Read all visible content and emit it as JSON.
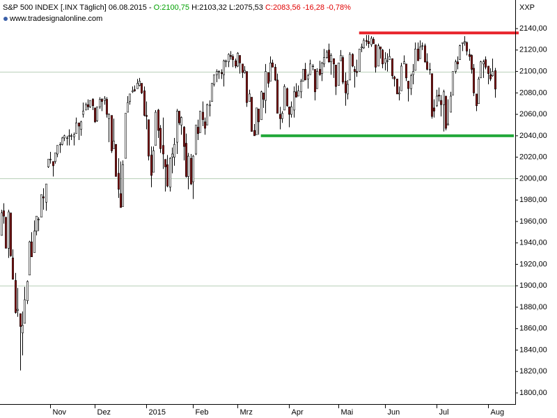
{
  "header": {
    "symbol": "S&P 500 INDEX [.INX  Täglich] 06.08.2015 -",
    "open": "O:2100,75",
    "high": "H:2103,32",
    "low": "L:2075,53",
    "close": "C:2083,56 -16,28 -0,78%"
  },
  "source": "www.tradesignalonline.com",
  "axis_name": "XXP",
  "chart_data": {
    "type": "candlestick",
    "up_color": "#ffffff",
    "down_color": "#8b1a1a",
    "outline_color": "#000000",
    "ylim": [
      1789.6,
      2166.7
    ],
    "yticks": [
      {
        "value": 1800,
        "label": "1800,00"
      },
      {
        "value": 1820,
        "label": "1820,00"
      },
      {
        "value": 1840,
        "label": "1840,00"
      },
      {
        "value": 1860,
        "label": "1860,00"
      },
      {
        "value": 1880,
        "label": "1880,00"
      },
      {
        "value": 1900,
        "label": "1900,00"
      },
      {
        "value": 1920,
        "label": "1920,00"
      },
      {
        "value": 1940,
        "label": "1940,00"
      },
      {
        "value": 1960,
        "label": "1960,00"
      },
      {
        "value": 1980,
        "label": "1980,00"
      },
      {
        "value": 2000,
        "label": "2000,00"
      },
      {
        "value": 2020,
        "label": "2020,00"
      },
      {
        "value": 2040,
        "label": "2040,00"
      },
      {
        "value": 2060,
        "label": "2060,00"
      },
      {
        "value": 2080,
        "label": "2080,00"
      },
      {
        "value": 2100,
        "label": "2100,00"
      },
      {
        "value": 2120,
        "label": "2120,00"
      },
      {
        "value": 2140,
        "label": "2140,00"
      }
    ],
    "ygrid": [
      1900,
      2000,
      2100
    ],
    "levels": [
      {
        "value": 2136,
        "start_index": 153,
        "color": "#e8242b"
      },
      {
        "value": 2040,
        "start_index": 111,
        "color": "#22a83a"
      }
    ],
    "categories": [
      null,
      null,
      null,
      null,
      null,
      null,
      null,
      null,
      null,
      null,
      null,
      null,
      null,
      null,
      null,
      null,
      null,
      null,
      null,
      null,
      null,
      "Nov",
      null,
      null,
      null,
      null,
      null,
      null,
      null,
      null,
      null,
      null,
      null,
      null,
      null,
      null,
      null,
      null,
      null,
      null,
      "Dez",
      null,
      null,
      null,
      null,
      null,
      null,
      null,
      null,
      null,
      null,
      null,
      null,
      null,
      null,
      null,
      null,
      null,
      null,
      null,
      null,
      null,
      "2015",
      null,
      null,
      null,
      null,
      null,
      null,
      null,
      null,
      null,
      null,
      null,
      null,
      null,
      null,
      null,
      null,
      null,
      null,
      null,
      "Feb",
      null,
      null,
      null,
      null,
      null,
      null,
      null,
      null,
      null,
      null,
      null,
      null,
      null,
      null,
      null,
      null,
      null,
      null,
      "Mrz",
      null,
      null,
      null,
      null,
      null,
      null,
      null,
      null,
      null,
      null,
      null,
      null,
      null,
      null,
      null,
      null,
      null,
      null,
      null,
      null,
      null,
      "Apr",
      null,
      null,
      null,
      null,
      null,
      null,
      null,
      null,
      null,
      null,
      null,
      null,
      null,
      null,
      null,
      null,
      null,
      null,
      null,
      null,
      "Mai",
      null,
      null,
      null,
      null,
      null,
      null,
      null,
      null,
      null,
      null,
      null,
      null,
      null,
      null,
      null,
      null,
      null,
      null,
      null,
      "Jun",
      null,
      null,
      null,
      null,
      null,
      null,
      null,
      null,
      null,
      null,
      null,
      null,
      null,
      null,
      null,
      null,
      null,
      null,
      null,
      null,
      null,
      "Jul",
      null,
      null,
      null,
      null,
      null,
      null,
      null,
      null,
      null,
      null,
      null,
      null,
      null,
      null,
      null,
      null,
      null,
      null,
      null,
      null,
      null,
      "Aug",
      null,
      null,
      null
    ],
    "open": [
      1947,
      1970,
      1964,
      1935,
      1968,
      1926,
      1905,
      1877,
      1874,
      1856,
      1865,
      1886,
      1910,
      1941,
      1931,
      1951,
      1962,
      1964,
      1983,
      1978,
      2011,
      2018,
      2016,
      2016,
      2023,
      2032,
      2032,
      2038,
      2038,
      2040,
      2040,
      2039,
      2042,
      2052,
      2046,
      2060,
      2064,
      2069,
      2067,
      2074,
      2066,
      2054,
      2067,
      2074,
      2073,
      2074,
      2056,
      2059,
      2028,
      2032,
      2005,
      1986,
      1974,
      2019,
      2062,
      2072,
      2081,
      2083,
      2084,
      2087,
      2089,
      2082,
      2059,
      2055,
      2022,
      2006,
      2031,
      2064,
      2047,
      2031,
      2018,
      2013,
      1992,
      2020,
      2020,
      2034,
      2063,
      2050,
      2048,
      2033,
      2002,
      2019,
      1997,
      2023,
      2048,
      2043,
      2062,
      2053,
      2050,
      2068,
      2072,
      2088,
      2097,
      2100,
      2099,
      2097,
      2109,
      2109,
      2115,
      2114,
      2110,
      2105,
      2115,
      2107,
      2099,
      2100,
      2072,
      2076,
      2045,
      2041,
      2065,
      2055,
      2080,
      2073,
      2099,
      2091,
      2108,
      2104,
      2092,
      2060,
      2056,
      2064,
      2084,
      2067,
      2060,
      2064,
      2081,
      2077,
      2081,
      2091,
      2102,
      2093,
      2097,
      2105,
      2102,
      2084,
      2102,
      2098,
      2107,
      2113,
      2120,
      2109,
      2112,
      2106,
      2087,
      2110,
      2113,
      2091,
      2079,
      2092,
      2116,
      2102,
      2100,
      2100,
      2122,
      2122,
      2129,
      2128,
      2125,
      2130,
      2125,
      2105,
      2123,
      2120,
      2108,
      2110,
      2111,
      2112,
      2095,
      2093,
      2079,
      2082,
      2107,
      2107,
      2091,
      2084,
      2097,
      2101,
      2121,
      2112,
      2124,
      2124,
      2109,
      2102,
      2098,
      2066,
      2068,
      2078,
      2073,
      2069,
      2077,
      2050,
      2062,
      2078,
      2100,
      2109,
      2111,
      2126,
      2127,
      2127,
      2116,
      2115,
      2103,
      2079,
      2070,
      2094,
      2107,
      2111,
      2105,
      2097,
      2096,
      2100.75
    ],
    "high": [
      1971,
      1977,
      1964,
      1971,
      1968,
      1934,
      1912,
      1898,
      1874,
      1876,
      1899,
      1905,
      1942,
      1950,
      1961,
      1965,
      1964,
      1985,
      1991,
      1995,
      2018,
      2025,
      2016,
      2024,
      2031,
      2034,
      2039,
      2041,
      2040,
      2046,
      2042,
      2043,
      2057,
      2052,
      2054,
      2071,
      2071,
      2074,
      2073,
      2075,
      2066,
      2067,
      2076,
      2075,
      2077,
      2076,
      2061,
      2059,
      2056,
      2032,
      2019,
      2016,
      2017,
      2061,
      2077,
      2079,
      2086,
      2087,
      2093,
      2094,
      2089,
      2086,
      2072,
      2055,
      2030,
      2030,
      2064,
      2065,
      2050,
      2057,
      2018,
      2022,
      2020,
      2029,
      2038,
      2065,
      2063,
      2058,
      2049,
      2042,
      2024,
      2023,
      2022,
      2050,
      2055,
      2063,
      2072,
      2057,
      2070,
      2073,
      2089,
      2097,
      2102,
      2101,
      2102,
      2111,
      2111,
      2117,
      2119,
      2116,
      2112,
      2118,
      2115,
      2107,
      2105,
      2100,
      2083,
      2076,
      2051,
      2066,
      2065,
      2082,
      2080,
      2107,
      2099,
      2114,
      2111,
      2107,
      2098,
      2067,
      2063,
      2088,
      2085,
      2067,
      2072,
      2086,
      2089,
      2087,
      2093,
      2102,
      2108,
      2098,
      2111,
      2107,
      2102,
      2103,
      2110,
      2109,
      2121,
      2120,
      2126,
      2117,
      2112,
      2106,
      2108,
      2120,
      2115,
      2099,
      2092,
      2118,
      2117,
      2105,
      2111,
      2121,
      2126,
      2131,
      2134,
      2134,
      2133,
      2132,
      2125,
      2126,
      2123,
      2121,
      2118,
      2117,
      2121,
      2112,
      2096,
      2093,
      2086,
      2108,
      2115,
      2107,
      2091,
      2098,
      2107,
      2127,
      2127,
      2129,
      2127,
      2126,
      2117,
      2108,
      2098,
      2074,
      2083,
      2085,
      2078,
      2083,
      2077,
      2074,
      2081,
      2100,
      2111,
      2114,
      2125,
      2127,
      2133,
      2128,
      2121,
      2116,
      2107,
      2079,
      2095,
      2110,
      2111,
      2114,
      2105,
      2103,
      2112,
      2103.32
    ],
    "low": [
      1947,
      1958,
      1935,
      1926,
      1927,
      1906,
      1874,
      1871,
      1821,
      1835,
      1865,
      1883,
      1910,
      1927,
      1931,
      1947,
      1951,
      1964,
      1971,
      1970,
      2010,
      2014,
      2002,
      2014,
      2020,
      2024,
      2031,
      2035,
      2031,
      2031,
      2036,
      2031,
      2042,
      2036,
      2040,
      2057,
      2064,
      2064,
      2066,
      2064,
      2052,
      2053,
      2065,
      2063,
      2069,
      2057,
      2034,
      2024,
      2028,
      2002,
      1982,
      1973,
      1974,
      2019,
      2062,
      2069,
      2080,
      2081,
      2084,
      2086,
      2079,
      2058,
      2046,
      2017,
      1992,
      2006,
      2031,
      2038,
      2024,
      2009,
      1988,
      1992,
      1988,
      2005,
      2012,
      2023,
      2050,
      2041,
      2017,
      2001,
      1990,
      1994,
      1981,
      2022,
      2036,
      2043,
      2049,
      2041,
      2050,
      2058,
      2072,
      2086,
      2090,
      2093,
      2093,
      2086,
      2104,
      2104,
      2111,
      2104,
      2103,
      2104,
      2098,
      2094,
      2098,
      2067,
      2072,
      2044,
      2040,
      2041,
      2041,
      2055,
      2066,
      2061,
      2085,
      2091,
      2104,
      2091,
      2061,
      2046,
      2052,
      2064,
      2067,
      2048,
      2057,
      2057,
      2076,
      2077,
      2075,
      2091,
      2092,
      2084,
      2097,
      2101,
      2073,
      2084,
      2096,
      2091,
      2104,
      2112,
      2108,
      2097,
      2094,
      2078,
      2087,
      2110,
      2088,
      2068,
      2074,
      2092,
      2104,
      2085,
      2095,
      2100,
      2118,
      2121,
      2124,
      2122,
      2123,
      2126,
      2099,
      2105,
      2112,
      2103,
      2101,
      2100,
      2111,
      2093,
      2086,
      2079,
      2073,
      2082,
      2107,
      2091,
      2072,
      2078,
      2088,
      2101,
      2110,
      2112,
      2120,
      2108,
      2101,
      2097,
      2056,
      2057,
      2067,
      2072,
      2058,
      2044,
      2045,
      2050,
      2062,
      2078,
      2098,
      2102,
      2111,
      2119,
      2124,
      2115,
      2110,
      2098,
      2077,
      2063,
      2070,
      2094,
      2094,
      2102,
      2088,
      2091,
      2095,
      2075.53
    ],
    "close": [
      1968,
      1965,
      1935,
      1969,
      1928,
      1906,
      1875,
      1878,
      1862,
      1863,
      1887,
      1904,
      1941,
      1927,
      1951,
      1965,
      1962,
      1985,
      1982,
      1995,
      2018,
      2018,
      2012,
      2024,
      2031,
      2032,
      2038,
      2040,
      2038,
      2040,
      2040,
      2041,
      2052,
      2049,
      2053,
      2063,
      2069,
      2067,
      2073,
      2068,
      2053,
      2067,
      2074,
      2072,
      2075,
      2060,
      2060,
      2026,
      2035,
      2002,
      1990,
      1973,
      2013,
      2061,
      2071,
      2079,
      2082,
      2082,
      2089,
      2091,
      2080,
      2059,
      2058,
      2021,
      2003,
      2026,
      2062,
      2045,
      2028,
      2023,
      2011,
      1993,
      2019,
      2023,
      2032,
      2063,
      2052,
      2057,
      2030,
      2002,
      2021,
      1995,
      2021,
      2050,
      2042,
      2063,
      2055,
      2047,
      2069,
      2069,
      2089,
      2097,
      2100,
      2100,
      2098,
      2110,
      2110,
      2116,
      2114,
      2111,
      2105,
      2117,
      2108,
      2099,
      2101,
      2071,
      2079,
      2044,
      2040,
      2066,
      2053,
      2081,
      2074,
      2100,
      2089,
      2108,
      2104,
      2092,
      2061,
      2056,
      2061,
      2086,
      2068,
      2060,
      2067,
      2081,
      2076,
      2082,
      2091,
      2102,
      2092,
      2096,
      2107,
      2105,
      2081,
      2100,
      2097,
      2108,
      2113,
      2118,
      2109,
      2115,
      2107,
      2086,
      2108,
      2115,
      2090,
      2080,
      2088,
      2116,
      2105,
      2100,
      2099,
      2121,
      2123,
      2129,
      2128,
      2126,
      2131,
      2126,
      2104,
      2124,
      2121,
      2107,
      2112,
      2110,
      2114,
      2096,
      2093,
      2079,
      2080,
      2105,
      2109,
      2094,
      2084,
      2096,
      2100,
      2121,
      2110,
      2123,
      2124,
      2109,
      2102,
      2102,
      2058,
      2063,
      2077,
      2077,
      2069,
      2081,
      2047,
      2051,
      2077,
      2100,
      2109,
      2107,
      2124,
      2127,
      2128,
      2119,
      2114,
      2102,
      2080,
      2068,
      2093,
      2109,
      2109,
      2104,
      2098,
      2093,
      2100,
      2083.56
    ]
  }
}
